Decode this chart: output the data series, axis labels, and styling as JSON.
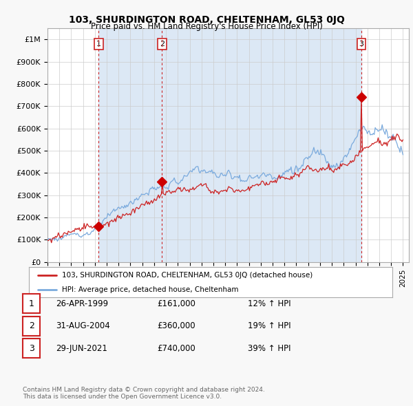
{
  "title": "103, SHURDINGTON ROAD, CHELTENHAM, GL53 0JQ",
  "subtitle": "Price paid vs. HM Land Registry's House Price Index (HPI)",
  "yticks": [
    0,
    100000,
    200000,
    300000,
    400000,
    500000,
    600000,
    700000,
    800000,
    900000,
    1000000
  ],
  "ytick_labels": [
    "£0",
    "£100K",
    "£200K",
    "£300K",
    "£400K",
    "£500K",
    "£600K",
    "£700K",
    "£800K",
    "£900K",
    "£1M"
  ],
  "ylim": [
    0,
    1050000
  ],
  "sale_dates": [
    1999.32,
    2004.66,
    2021.49
  ],
  "sale_prices": [
    161000,
    360000,
    740000
  ],
  "sale_labels": [
    "1",
    "2",
    "3"
  ],
  "vline_color": "#cc2222",
  "sale_marker_color": "#cc0000",
  "red_line_color": "#cc2222",
  "blue_line_color": "#7aaadd",
  "shade_color": "#dce8f5",
  "legend_label_red": "103, SHURDINGTON ROAD, CHELTENHAM, GL53 0JQ (detached house)",
  "legend_label_blue": "HPI: Average price, detached house, Cheltenham",
  "table_rows": [
    {
      "num": "1",
      "date": "26-APR-1999",
      "price": "£161,000",
      "hpi": "12% ↑ HPI"
    },
    {
      "num": "2",
      "date": "31-AUG-2004",
      "price": "£360,000",
      "hpi": "19% ↑ HPI"
    },
    {
      "num": "3",
      "date": "29-JUN-2021",
      "price": "£740,000",
      "hpi": "39% ↑ HPI"
    }
  ],
  "footer": "Contains HM Land Registry data © Crown copyright and database right 2024.\nThis data is licensed under the Open Government Licence v3.0.",
  "background_color": "#f8f8f8",
  "plot_bg_color": "#ffffff",
  "grid_color": "#cccccc"
}
